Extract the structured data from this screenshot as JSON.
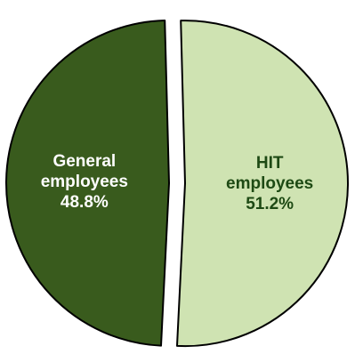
{
  "chart_data": {
    "type": "pie",
    "title": "",
    "exploded": true,
    "slices": [
      {
        "label_lines": [
          "HIT",
          "employees"
        ],
        "value": 51.2,
        "value_label": "51.2%",
        "color": "#cfe3b2",
        "text_color": "#1e4a14"
      },
      {
        "label_lines": [
          "General",
          "employees"
        ],
        "value": 48.8,
        "value_label": "48.8%",
        "color": "#395b1d",
        "text_color": "#ffffff"
      }
    ],
    "outline_color": "#000000",
    "legend": "none"
  }
}
